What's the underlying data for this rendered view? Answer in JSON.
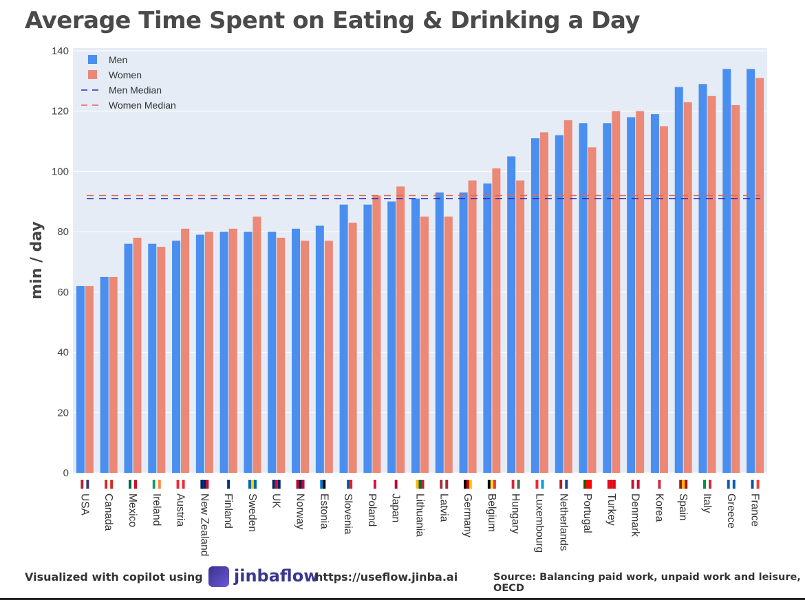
{
  "chart_data": {
    "type": "bar",
    "title": "Average Time Spent on Eating & Drinking a Day",
    "xlabel": "",
    "ylabel": "min / day",
    "ylim": [
      0,
      140
    ],
    "yticks": [
      0,
      20,
      40,
      60,
      80,
      100,
      120,
      140
    ],
    "grid": true,
    "legend_position": "top-left",
    "categories": [
      "USA",
      "Canada",
      "Mexico",
      "Ireland",
      "Austria",
      "New Zealand",
      "Finland",
      "Sweden",
      "UK",
      "Norway",
      "Estonia",
      "Slovenia",
      "Poland",
      "Japan",
      "Lithuania",
      "Latvia",
      "Germany",
      "Belgium",
      "Hungary",
      "Luxembourg",
      "Netherlands",
      "Portugal",
      "Turkey",
      "Denmark",
      "Korea",
      "Spain",
      "Italy",
      "Greece",
      "France"
    ],
    "series": [
      {
        "name": "Men",
        "color": "#4a8ef0",
        "values": [
          62,
          65,
          76,
          76,
          77,
          79,
          80,
          80,
          80,
          81,
          82,
          89,
          89,
          90,
          91,
          93,
          93,
          96,
          105,
          111,
          112,
          116,
          116,
          118,
          119,
          128,
          129,
          134,
          134
        ]
      },
      {
        "name": "Women",
        "color": "#ec8876",
        "values": [
          62,
          65,
          78,
          75,
          81,
          80,
          81,
          85,
          78,
          77,
          77,
          83,
          92,
          95,
          85,
          85,
          97,
          101,
          97,
          113,
          117,
          108,
          120,
          120,
          115,
          123,
          125,
          122,
          131
        ]
      }
    ],
    "reference_lines": [
      {
        "name": "Men Median",
        "value": 91,
        "color": "#2b2bb8",
        "style": "dashed"
      },
      {
        "name": "Women Median",
        "value": 92,
        "color": "#e0675a",
        "style": "dashed"
      }
    ],
    "plot_background": "#e5ecf6"
  },
  "footer": {
    "visualized": "Visualized with copilot using",
    "brand": "jinbaflow",
    "url": "https://useflow.jinba.ai",
    "source": "Source: Balancing paid work, unpaid work and leisure, OECD"
  }
}
